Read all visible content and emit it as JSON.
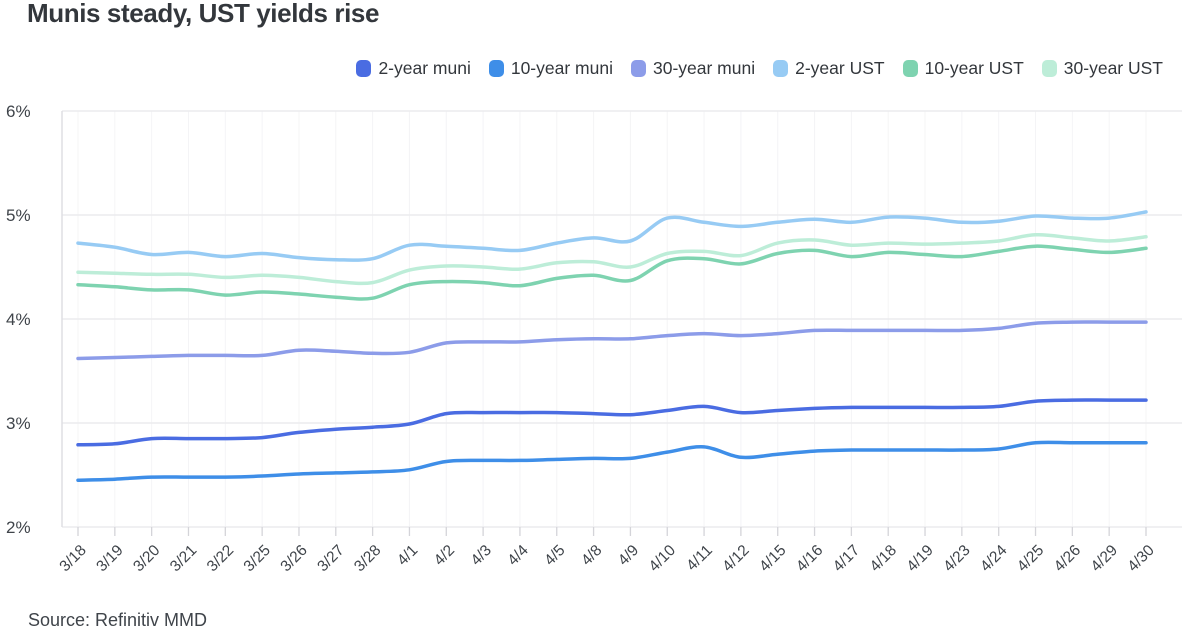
{
  "source": "Source: Refinitiv MMD",
  "chart_data": {
    "type": "line",
    "title": "Munis steady, UST yields rise",
    "xlabel": "",
    "ylabel": "",
    "ylim": [
      2,
      6
    ],
    "grid": true,
    "legend_position": "top-right",
    "yticks": {
      "values": [
        6,
        5,
        4,
        3,
        2
      ],
      "labels": [
        "6%",
        "5%",
        "4%",
        "3%",
        "2%"
      ]
    },
    "categories": [
      "3/18",
      "3/19",
      "3/20",
      "3/21",
      "3/22",
      "3/25",
      "3/26",
      "3/27",
      "3/28",
      "4/1",
      "4/2",
      "4/3",
      "4/4",
      "4/5",
      "4/8",
      "4/9",
      "4/10",
      "4/11",
      "4/12",
      "4/15",
      "4/16",
      "4/17",
      "4/18",
      "4/19",
      "4/23",
      "4/24",
      "4/25",
      "4/26",
      "4/29",
      "4/30"
    ],
    "series": [
      {
        "name": "2-year muni",
        "color": "#4a6ce2",
        "values": [
          2.79,
          2.8,
          2.85,
          2.85,
          2.85,
          2.86,
          2.91,
          2.94,
          2.96,
          2.99,
          3.09,
          3.1,
          3.1,
          3.1,
          3.09,
          3.08,
          3.12,
          3.16,
          3.1,
          3.12,
          3.14,
          3.15,
          3.15,
          3.15,
          3.15,
          3.16,
          3.21,
          3.22,
          3.22,
          3.22
        ]
      },
      {
        "name": "10-year muni",
        "color": "#3e8ee8",
        "values": [
          2.45,
          2.46,
          2.48,
          2.48,
          2.48,
          2.49,
          2.51,
          2.52,
          2.53,
          2.55,
          2.63,
          2.64,
          2.64,
          2.65,
          2.66,
          2.66,
          2.72,
          2.77,
          2.67,
          2.7,
          2.73,
          2.74,
          2.74,
          2.74,
          2.74,
          2.75,
          2.81,
          2.81,
          2.81,
          2.81
        ]
      },
      {
        "name": "30-year muni",
        "color": "#8c9ce9",
        "values": [
          3.62,
          3.63,
          3.64,
          3.65,
          3.65,
          3.65,
          3.7,
          3.69,
          3.67,
          3.68,
          3.77,
          3.78,
          3.78,
          3.8,
          3.81,
          3.81,
          3.84,
          3.86,
          3.84,
          3.86,
          3.89,
          3.89,
          3.89,
          3.89,
          3.89,
          3.91,
          3.96,
          3.97,
          3.97,
          3.97
        ]
      },
      {
        "name": "2-year UST",
        "color": "#97cbf4",
        "values": [
          4.73,
          4.69,
          4.62,
          4.64,
          4.6,
          4.63,
          4.59,
          4.57,
          4.58,
          4.71,
          4.7,
          4.68,
          4.66,
          4.73,
          4.78,
          4.75,
          4.97,
          4.93,
          4.89,
          4.93,
          4.96,
          4.93,
          4.98,
          4.97,
          4.93,
          4.94,
          4.99,
          4.97,
          4.97,
          5.03
        ]
      },
      {
        "name": "10-year UST",
        "color": "#7ed3b0",
        "values": [
          4.33,
          4.31,
          4.28,
          4.28,
          4.23,
          4.26,
          4.24,
          4.21,
          4.2,
          4.33,
          4.36,
          4.35,
          4.32,
          4.39,
          4.42,
          4.37,
          4.56,
          4.58,
          4.53,
          4.63,
          4.66,
          4.6,
          4.64,
          4.62,
          4.6,
          4.65,
          4.7,
          4.67,
          4.64,
          4.68
        ]
      },
      {
        "name": "30-year UST",
        "color": "#bdedd8",
        "values": [
          4.45,
          4.44,
          4.43,
          4.43,
          4.4,
          4.42,
          4.4,
          4.36,
          4.35,
          4.47,
          4.51,
          4.5,
          4.48,
          4.54,
          4.55,
          4.5,
          4.63,
          4.65,
          4.61,
          4.73,
          4.76,
          4.71,
          4.73,
          4.72,
          4.73,
          4.75,
          4.81,
          4.78,
          4.75,
          4.79
        ]
      }
    ],
    "colors": {
      "title_text": "#33373c",
      "axis_text": "#3f444a",
      "grid_h": "#ebebee",
      "grid_v": "#f4f4f6",
      "axis_line": "#dfdfe3",
      "tick": "#d4d4d9",
      "background": "#ffffff"
    }
  }
}
